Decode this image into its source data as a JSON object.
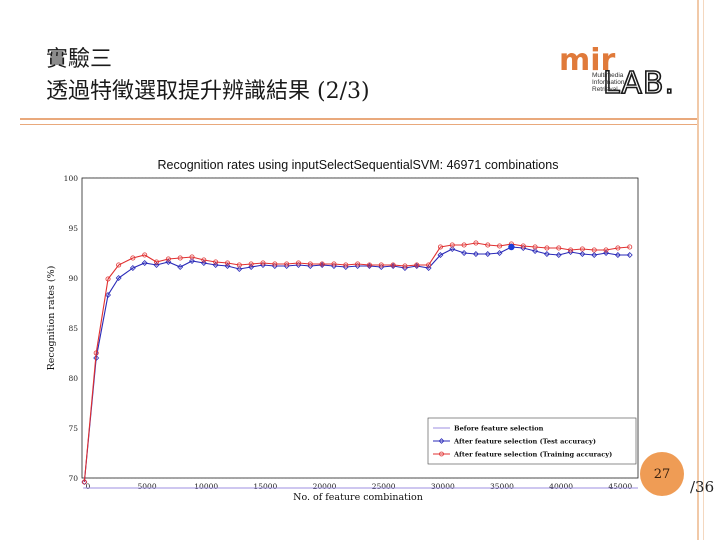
{
  "slide": {
    "title_line1": "實驗三",
    "title_line2": "透過特徵選取提升辨識結果 (2/3)",
    "page_number": "27",
    "page_total": "/36"
  },
  "logo": {
    "text_main": "mir",
    "text_lab": "LAB.",
    "lines": [
      "Multimedia",
      "Information",
      "Retrieval"
    ]
  },
  "chart_data": {
    "type": "line",
    "title": "Recognition rates using inputSelectSequentialSVM: 46971 combinations",
    "xlabel": "No. of feature combination",
    "ylabel": "Recognition rates (%)",
    "xlim": [
      -500,
      46500
    ],
    "ylim": [
      70,
      100
    ],
    "xticks": [
      0,
      5000,
      10000,
      15000,
      20000,
      25000,
      30000,
      35000,
      40000,
      45000
    ],
    "yticks": [
      70,
      75,
      80,
      85,
      90,
      95,
      100
    ],
    "grid": true,
    "legend_position": "bottom-right",
    "series": [
      {
        "name": "Before feature selection",
        "color": "#9c8fe0",
        "marker": "none",
        "x": [
          -400,
          46500
        ],
        "y": [
          69.0,
          69.0
        ]
      },
      {
        "name": "After feature selection (Test accuracy)",
        "color": "#2a2ab8",
        "marker": "diamond",
        "x": [
          -300,
          700,
          1700,
          2600,
          3800,
          4800,
          5800,
          6800,
          7800,
          8800,
          9800,
          10800,
          11800,
          12800,
          13800,
          14800,
          15800,
          16800,
          17800,
          18800,
          19800,
          20800,
          21800,
          22800,
          23800,
          24800,
          25800,
          26800,
          27800,
          28800,
          29800,
          30800,
          31800,
          32800,
          33800,
          34800,
          35800,
          36800,
          37800,
          38800,
          39800,
          40800,
          41800,
          42800,
          43800,
          44800,
          45800
        ],
        "y": [
          69.6,
          82.0,
          88.3,
          90.0,
          91.0,
          91.5,
          91.3,
          91.6,
          91.1,
          91.7,
          91.5,
          91.3,
          91.2,
          90.9,
          91.1,
          91.3,
          91.2,
          91.2,
          91.3,
          91.2,
          91.3,
          91.2,
          91.1,
          91.2,
          91.2,
          91.1,
          91.2,
          91.0,
          91.2,
          91.0,
          92.3,
          92.9,
          92.5,
          92.4,
          92.4,
          92.5,
          93.1,
          93.0,
          92.7,
          92.4,
          92.3,
          92.6,
          92.4,
          92.3,
          92.5,
          92.3,
          92.3
        ]
      },
      {
        "name": "After feature selection (Training accuracy)",
        "color": "#e03030",
        "marker": "circle",
        "x": [
          -300,
          700,
          1700,
          2600,
          3800,
          4800,
          5800,
          6800,
          7800,
          8800,
          9800,
          10800,
          11800,
          12800,
          13800,
          14800,
          15800,
          16800,
          17800,
          18800,
          19800,
          20800,
          21800,
          22800,
          23800,
          24800,
          25800,
          26800,
          27800,
          28800,
          29800,
          30800,
          31800,
          32800,
          33800,
          34800,
          35800,
          36800,
          37800,
          38800,
          39800,
          40800,
          41800,
          42800,
          43800,
          44800,
          45800
        ],
        "y": [
          69.6,
          82.5,
          89.9,
          91.3,
          92.0,
          92.3,
          91.6,
          91.9,
          92.0,
          92.1,
          91.8,
          91.6,
          91.5,
          91.3,
          91.4,
          91.5,
          91.4,
          91.4,
          91.5,
          91.4,
          91.4,
          91.4,
          91.3,
          91.4,
          91.3,
          91.3,
          91.3,
          91.2,
          91.3,
          91.3,
          93.1,
          93.3,
          93.3,
          93.5,
          93.3,
          93.2,
          93.4,
          93.2,
          93.1,
          93.0,
          93.0,
          92.8,
          92.9,
          92.8,
          92.8,
          93.0,
          93.1
        ]
      }
    ],
    "highlight_point": {
      "x": 35800,
      "y": 93.1,
      "color": "#1a3cd8"
    }
  }
}
